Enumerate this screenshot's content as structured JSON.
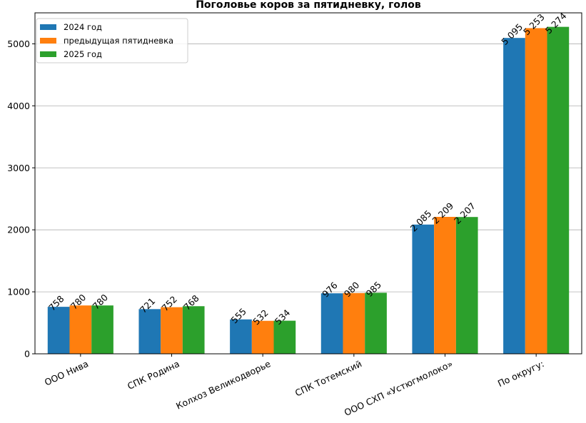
{
  "chart_data": {
    "type": "bar",
    "title": "Поголовье коров за пятидневку, голов",
    "xlabel": "",
    "ylabel": "",
    "ylim": [
      0,
      5500
    ],
    "yticks": [
      0,
      1000,
      2000,
      3000,
      4000,
      5000
    ],
    "grid": "horizontal",
    "legend_position": "top-left",
    "categories": [
      "ООО Нива",
      "СПК Родина",
      "Колхоз Великодворье",
      "СПК Тотемский",
      "ООО СХП «Устюгмолоко»",
      "По округу:"
    ],
    "series": [
      {
        "name": "2024 год",
        "color": "#1f77b4",
        "values": [
          758,
          721,
          555,
          976,
          2085,
          5095
        ],
        "labels": [
          "758",
          "721",
          "555",
          "976",
          "2 085",
          "5 095"
        ]
      },
      {
        "name": "предыдущая пятидневка",
        "color": "#ff7f0e",
        "values": [
          780,
          752,
          532,
          980,
          2209,
          5253
        ],
        "labels": [
          "780",
          "752",
          "532",
          "980",
          "2 209",
          "5 253"
        ]
      },
      {
        "name": "2025 год",
        "color": "#2ca02c",
        "values": [
          780,
          768,
          534,
          985,
          2207,
          5274
        ],
        "labels": [
          "780",
          "768",
          "534",
          "985",
          "2 207",
          "5 274"
        ]
      }
    ]
  }
}
